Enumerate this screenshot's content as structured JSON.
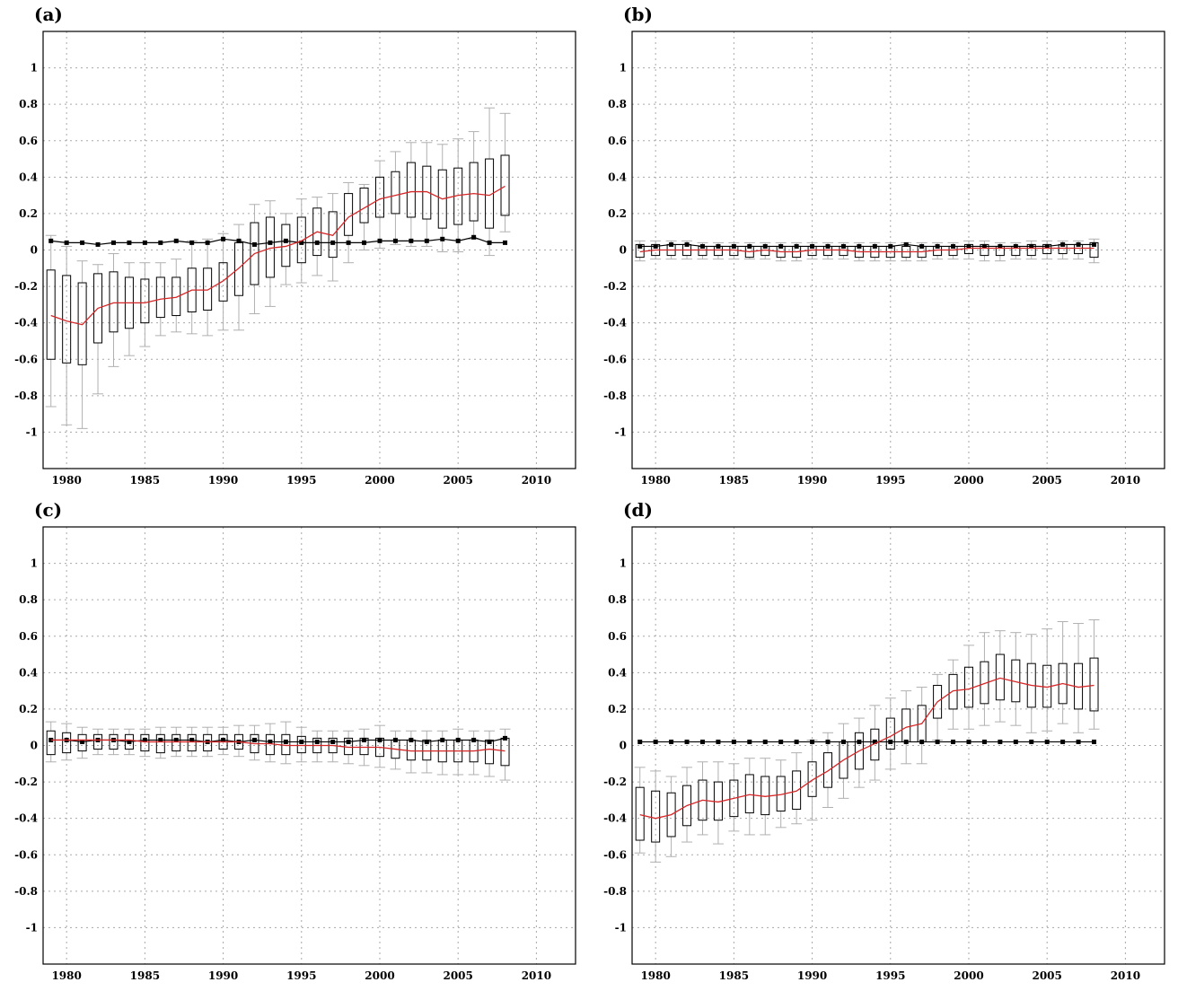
{
  "colors": {
    "median": "#d62728",
    "reference": "#000000",
    "box": "#000000",
    "whisker": "#b0b0b0",
    "grid": "#a8a8a8"
  },
  "chart_data": [
    {
      "type": "box",
      "panel_label": "(a)",
      "xlim": [
        1978.5,
        2012.5
      ],
      "ylim": [
        -1.2,
        1.2
      ],
      "xticks": [
        1980,
        1985,
        1990,
        1995,
        2000,
        2005,
        2010
      ],
      "yticks": [
        -1,
        -0.8,
        -0.6,
        -0.4,
        -0.2,
        0,
        0.2,
        0.4,
        0.6,
        0.8,
        1
      ],
      "grid": true,
      "x": [
        1979,
        1980,
        1981,
        1982,
        1983,
        1984,
        1985,
        1986,
        1987,
        1988,
        1989,
        1990,
        1991,
        1992,
        1993,
        1994,
        1995,
        1996,
        1997,
        1998,
        1999,
        2000,
        2001,
        2002,
        2003,
        2004,
        2005,
        2006,
        2007,
        2008
      ],
      "median": [
        -0.36,
        -0.39,
        -0.41,
        -0.32,
        -0.29,
        -0.29,
        -0.29,
        -0.27,
        -0.26,
        -0.22,
        -0.22,
        -0.17,
        -0.1,
        -0.02,
        0.01,
        0.02,
        0.05,
        0.1,
        0.08,
        0.18,
        0.23,
        0.28,
        0.3,
        0.32,
        0.32,
        0.28,
        0.3,
        0.31,
        0.3,
        0.35
      ],
      "q1": [
        -0.6,
        -0.62,
        -0.63,
        -0.51,
        -0.45,
        -0.43,
        -0.4,
        -0.37,
        -0.36,
        -0.34,
        -0.33,
        -0.28,
        -0.25,
        -0.19,
        -0.15,
        -0.09,
        -0.07,
        -0.03,
        -0.04,
        0.08,
        0.15,
        0.18,
        0.2,
        0.18,
        0.17,
        0.12,
        0.14,
        0.16,
        0.12,
        0.19
      ],
      "q3": [
        -0.11,
        -0.14,
        -0.18,
        -0.13,
        -0.12,
        -0.15,
        -0.16,
        -0.15,
        -0.15,
        -0.1,
        -0.1,
        -0.07,
        0.04,
        0.15,
        0.18,
        0.14,
        0.18,
        0.23,
        0.21,
        0.31,
        0.34,
        0.4,
        0.43,
        0.48,
        0.46,
        0.44,
        0.45,
        0.48,
        0.5,
        0.52
      ],
      "whisker_low": [
        -0.86,
        -0.96,
        -0.98,
        -0.79,
        -0.64,
        -0.58,
        -0.53,
        -0.47,
        -0.45,
        -0.46,
        -0.47,
        -0.44,
        -0.44,
        -0.35,
        -0.31,
        -0.19,
        -0.18,
        -0.14,
        -0.17,
        -0.07,
        0.0,
        0.01,
        0.03,
        0.02,
        0.02,
        -0.01,
        -0.01,
        0.06,
        -0.03,
        0.1
      ],
      "whisker_high": [
        0.08,
        0.02,
        -0.06,
        -0.08,
        -0.02,
        -0.07,
        -0.07,
        -0.07,
        -0.05,
        0.05,
        0.06,
        0.09,
        0.14,
        0.25,
        0.27,
        0.2,
        0.28,
        0.29,
        0.31,
        0.37,
        0.36,
        0.49,
        0.54,
        0.59,
        0.59,
        0.58,
        0.61,
        0.65,
        0.78,
        0.75
      ],
      "reference": [
        0.05,
        0.04,
        0.04,
        0.03,
        0.04,
        0.04,
        0.04,
        0.04,
        0.05,
        0.04,
        0.04,
        0.06,
        0.05,
        0.03,
        0.04,
        0.05,
        0.04,
        0.04,
        0.04,
        0.04,
        0.04,
        0.05,
        0.05,
        0.05,
        0.05,
        0.06,
        0.05,
        0.07,
        0.04,
        0.04
      ]
    },
    {
      "type": "box",
      "panel_label": "(b)",
      "xlim": [
        1978.5,
        2012.5
      ],
      "ylim": [
        -1.2,
        1.2
      ],
      "xticks": [
        1980,
        1985,
        1990,
        1995,
        2000,
        2005,
        2010
      ],
      "yticks": [
        -1,
        -0.8,
        -0.6,
        -0.4,
        -0.2,
        0,
        0.2,
        0.4,
        0.6,
        0.8,
        1
      ],
      "grid": true,
      "x": [
        1979,
        1980,
        1981,
        1982,
        1983,
        1984,
        1985,
        1986,
        1987,
        1988,
        1989,
        1990,
        1991,
        1992,
        1993,
        1994,
        1995,
        1996,
        1997,
        1998,
        1999,
        2000,
        2001,
        2002,
        2003,
        2004,
        2005,
        2006,
        2007,
        2008
      ],
      "median": [
        -0.01,
        0.0,
        0.0,
        0.0,
        0.0,
        0.0,
        0.0,
        -0.01,
        0.0,
        -0.01,
        -0.01,
        0.0,
        0.0,
        0.0,
        -0.01,
        -0.01,
        -0.01,
        -0.01,
        -0.01,
        0.0,
        0.0,
        0.01,
        0.01,
        0.01,
        0.01,
        0.01,
        0.01,
        0.01,
        0.01,
        0.01
      ],
      "q1": [
        -0.04,
        -0.03,
        -0.03,
        -0.03,
        -0.03,
        -0.03,
        -0.03,
        -0.04,
        -0.03,
        -0.04,
        -0.04,
        -0.03,
        -0.03,
        -0.03,
        -0.04,
        -0.04,
        -0.04,
        -0.04,
        -0.04,
        -0.03,
        -0.03,
        -0.02,
        -0.03,
        -0.03,
        -0.03,
        -0.03,
        -0.02,
        -0.02,
        -0.02,
        -0.04
      ],
      "q3": [
        0.03,
        0.03,
        0.03,
        0.03,
        0.02,
        0.02,
        0.02,
        0.02,
        0.02,
        0.02,
        0.02,
        0.02,
        0.02,
        0.02,
        0.02,
        0.02,
        0.02,
        0.02,
        0.02,
        0.02,
        0.02,
        0.03,
        0.03,
        0.02,
        0.02,
        0.03,
        0.03,
        0.03,
        0.03,
        0.04
      ],
      "whisker_low": [
        -0.06,
        -0.05,
        -0.05,
        -0.05,
        -0.05,
        -0.05,
        -0.05,
        -0.05,
        -0.05,
        -0.06,
        -0.06,
        -0.05,
        -0.05,
        -0.05,
        -0.06,
        -0.06,
        -0.06,
        -0.06,
        -0.06,
        -0.05,
        -0.05,
        -0.05,
        -0.06,
        -0.06,
        -0.05,
        -0.05,
        -0.05,
        -0.05,
        -0.05,
        -0.07
      ],
      "whisker_high": [
        0.05,
        0.05,
        0.05,
        0.05,
        0.04,
        0.04,
        0.04,
        0.04,
        0.04,
        0.04,
        0.04,
        0.04,
        0.04,
        0.04,
        0.04,
        0.04,
        0.04,
        0.04,
        0.04,
        0.04,
        0.04,
        0.05,
        0.05,
        0.04,
        0.04,
        0.05,
        0.05,
        0.05,
        0.05,
        0.06
      ],
      "reference": [
        0.02,
        0.02,
        0.03,
        0.03,
        0.02,
        0.02,
        0.02,
        0.02,
        0.02,
        0.02,
        0.02,
        0.02,
        0.02,
        0.02,
        0.02,
        0.02,
        0.02,
        0.03,
        0.02,
        0.02,
        0.02,
        0.02,
        0.02,
        0.02,
        0.02,
        0.02,
        0.02,
        0.03,
        0.03,
        0.03
      ]
    },
    {
      "type": "box",
      "panel_label": "(c)",
      "xlim": [
        1978.5,
        2012.5
      ],
      "ylim": [
        -1.2,
        1.2
      ],
      "xticks": [
        1980,
        1985,
        1990,
        1995,
        2000,
        2005,
        2010
      ],
      "yticks": [
        -1,
        -0.8,
        -0.6,
        -0.4,
        -0.2,
        0,
        0.2,
        0.4,
        0.6,
        0.8,
        1
      ],
      "grid": true,
      "x": [
        1979,
        1980,
        1981,
        1982,
        1983,
        1984,
        1985,
        1986,
        1987,
        1988,
        1989,
        1990,
        1991,
        1992,
        1993,
        1994,
        1995,
        1996,
        1997,
        1998,
        1999,
        2000,
        2001,
        2002,
        2003,
        2004,
        2005,
        2006,
        2007,
        2008
      ],
      "median": [
        0.03,
        0.03,
        0.03,
        0.03,
        0.03,
        0.03,
        0.02,
        0.02,
        0.02,
        0.02,
        0.02,
        0.02,
        0.02,
        0.01,
        0.01,
        0.0,
        0.0,
        0.0,
        0.0,
        -0.01,
        -0.01,
        -0.01,
        -0.02,
        -0.03,
        -0.03,
        -0.03,
        -0.03,
        -0.03,
        -0.02,
        -0.03
      ],
      "q1": [
        -0.05,
        -0.04,
        -0.03,
        -0.02,
        -0.02,
        -0.02,
        -0.03,
        -0.04,
        -0.03,
        -0.03,
        -0.03,
        -0.02,
        -0.02,
        -0.04,
        -0.05,
        -0.05,
        -0.04,
        -0.04,
        -0.04,
        -0.05,
        -0.05,
        -0.06,
        -0.07,
        -0.08,
        -0.08,
        -0.09,
        -0.09,
        -0.09,
        -0.1,
        -0.11
      ],
      "q3": [
        0.08,
        0.07,
        0.06,
        0.06,
        0.06,
        0.06,
        0.06,
        0.06,
        0.06,
        0.06,
        0.06,
        0.06,
        0.06,
        0.06,
        0.06,
        0.06,
        0.05,
        0.04,
        0.04,
        0.04,
        0.04,
        0.04,
        0.03,
        0.03,
        0.03,
        0.03,
        0.03,
        0.03,
        0.03,
        0.04
      ],
      "whisker_low": [
        -0.09,
        -0.08,
        -0.07,
        -0.05,
        -0.05,
        -0.05,
        -0.06,
        -0.07,
        -0.06,
        -0.06,
        -0.06,
        -0.05,
        -0.06,
        -0.08,
        -0.09,
        -0.1,
        -0.09,
        -0.09,
        -0.09,
        -0.1,
        -0.11,
        -0.12,
        -0.13,
        -0.15,
        -0.15,
        -0.16,
        -0.16,
        -0.16,
        -0.17,
        -0.19
      ],
      "whisker_high": [
        0.13,
        0.12,
        0.1,
        0.09,
        0.09,
        0.09,
        0.09,
        0.1,
        0.1,
        0.1,
        0.1,
        0.1,
        0.11,
        0.11,
        0.12,
        0.13,
        0.1,
        0.08,
        0.08,
        0.08,
        0.09,
        0.11,
        0.08,
        0.08,
        0.08,
        0.08,
        0.09,
        0.08,
        0.08,
        0.09
      ],
      "reference": [
        0.03,
        0.03,
        0.02,
        0.03,
        0.03,
        0.02,
        0.03,
        0.03,
        0.03,
        0.03,
        0.02,
        0.03,
        0.02,
        0.03,
        0.02,
        0.02,
        0.02,
        0.02,
        0.02,
        0.02,
        0.03,
        0.03,
        0.03,
        0.03,
        0.02,
        0.03,
        0.03,
        0.03,
        0.02,
        0.04
      ]
    },
    {
      "type": "box",
      "panel_label": "(d)",
      "xlim": [
        1978.5,
        2012.5
      ],
      "ylim": [
        -1.2,
        1.2
      ],
      "xticks": [
        1980,
        1985,
        1990,
        1995,
        2000,
        2005,
        2010
      ],
      "yticks": [
        -1,
        -0.8,
        -0.6,
        -0.4,
        -0.2,
        0,
        0.2,
        0.4,
        0.6,
        0.8,
        1
      ],
      "grid": true,
      "x": [
        1979,
        1980,
        1981,
        1982,
        1983,
        1984,
        1985,
        1986,
        1987,
        1988,
        1989,
        1990,
        1991,
        1992,
        1993,
        1994,
        1995,
        1996,
        1997,
        1998,
        1999,
        2000,
        2001,
        2002,
        2003,
        2004,
        2005,
        2006,
        2007,
        2008
      ],
      "median": [
        -0.38,
        -0.4,
        -0.38,
        -0.33,
        -0.3,
        -0.31,
        -0.29,
        -0.27,
        -0.28,
        -0.27,
        -0.25,
        -0.19,
        -0.14,
        -0.08,
        -0.03,
        0.01,
        0.05,
        0.1,
        0.12,
        0.24,
        0.3,
        0.31,
        0.34,
        0.37,
        0.35,
        0.33,
        0.32,
        0.34,
        0.32,
        0.33
      ],
      "q1": [
        -0.52,
        -0.53,
        -0.5,
        -0.44,
        -0.41,
        -0.41,
        -0.39,
        -0.37,
        -0.38,
        -0.36,
        -0.35,
        -0.28,
        -0.23,
        -0.18,
        -0.13,
        -0.08,
        -0.02,
        0.02,
        0.02,
        0.15,
        0.2,
        0.21,
        0.23,
        0.25,
        0.24,
        0.21,
        0.21,
        0.23,
        0.2,
        0.19
      ],
      "q3": [
        -0.23,
        -0.25,
        -0.26,
        -0.22,
        -0.19,
        -0.2,
        -0.19,
        -0.16,
        -0.17,
        -0.17,
        -0.14,
        -0.09,
        -0.04,
        0.02,
        0.07,
        0.09,
        0.15,
        0.2,
        0.22,
        0.33,
        0.39,
        0.43,
        0.46,
        0.5,
        0.47,
        0.45,
        0.44,
        0.45,
        0.45,
        0.48
      ],
      "whisker_low": [
        -0.59,
        -0.64,
        -0.61,
        -0.53,
        -0.49,
        -0.54,
        -0.47,
        -0.49,
        -0.49,
        -0.45,
        -0.43,
        -0.41,
        -0.34,
        -0.29,
        -0.23,
        -0.19,
        -0.13,
        -0.1,
        -0.1,
        0.03,
        0.09,
        0.09,
        0.11,
        0.13,
        0.11,
        0.07,
        0.08,
        0.12,
        0.07,
        0.09
      ],
      "whisker_high": [
        -0.12,
        -0.14,
        -0.17,
        -0.12,
        -0.09,
        -0.09,
        -0.1,
        -0.07,
        -0.07,
        -0.08,
        -0.04,
        0.03,
        0.07,
        0.12,
        0.15,
        0.22,
        0.26,
        0.3,
        0.32,
        0.39,
        0.47,
        0.55,
        0.62,
        0.63,
        0.62,
        0.61,
        0.64,
        0.68,
        0.67,
        0.69
      ],
      "reference": [
        0.02,
        0.02,
        0.02,
        0.02,
        0.02,
        0.02,
        0.02,
        0.02,
        0.02,
        0.02,
        0.02,
        0.02,
        0.02,
        0.02,
        0.02,
        0.02,
        0.02,
        0.02,
        0.02,
        0.02,
        0.02,
        0.02,
        0.02,
        0.02,
        0.02,
        0.02,
        0.02,
        0.02,
        0.02,
        0.02
      ]
    }
  ]
}
